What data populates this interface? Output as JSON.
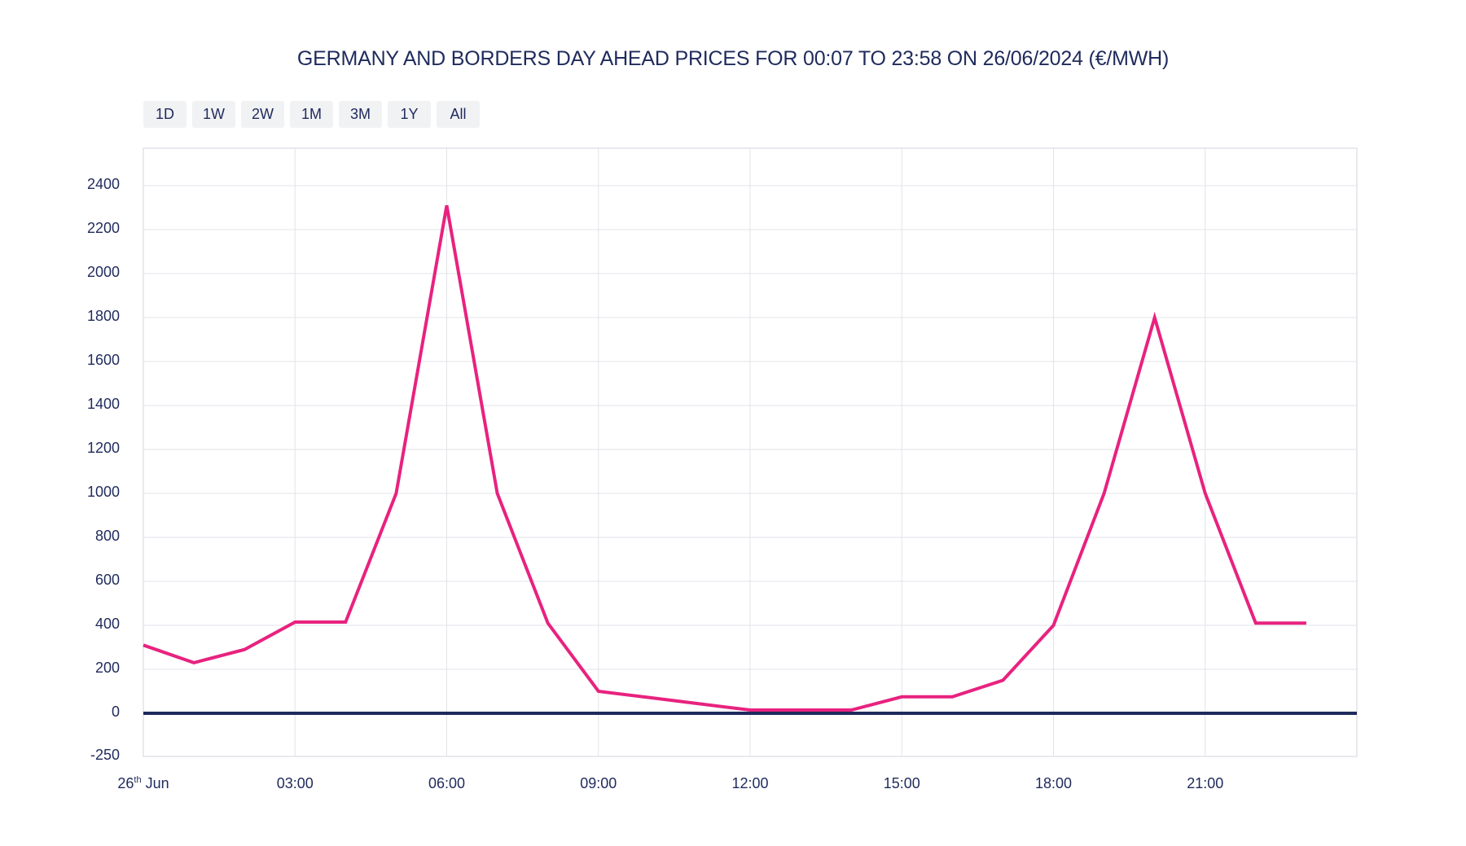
{
  "chart_data": {
    "type": "line",
    "title": "GERMANY AND BORDERS DAY AHEAD PRICES FOR 00:07 TO 23:58 ON 26/06/2024 (€/MWH)",
    "range_buttons": [
      "1D",
      "1W",
      "2W",
      "1M",
      "3M",
      "1Y",
      "All"
    ],
    "x": [
      "00:00",
      "01:00",
      "02:00",
      "03:00",
      "04:00",
      "05:00",
      "06:00",
      "07:00",
      "08:00",
      "09:00",
      "10:00",
      "11:00",
      "12:00",
      "13:00",
      "14:00",
      "15:00",
      "16:00",
      "17:00",
      "18:00",
      "19:00",
      "20:00",
      "21:00",
      "22:00",
      "23:00"
    ],
    "values": [
      310,
      230,
      290,
      415,
      415,
      1000,
      2310,
      1000,
      410,
      100,
      72,
      43,
      15,
      15,
      15,
      75,
      75,
      150,
      400,
      1000,
      1800,
      1000,
      410,
      410
    ],
    "x_tick_labels": [
      {
        "main": "26",
        "sup": "th",
        "suffix": " Jun"
      },
      {
        "main": "03:00"
      },
      {
        "main": "06:00"
      },
      {
        "main": "09:00"
      },
      {
        "main": "12:00"
      },
      {
        "main": "15:00"
      },
      {
        "main": "18:00"
      },
      {
        "main": "21:00"
      }
    ],
    "y_ticks": [
      2400,
      2200,
      2000,
      1800,
      1600,
      1400,
      1200,
      1000,
      800,
      600,
      400,
      200,
      0,
      -250
    ],
    "ylim": [
      -250,
      2400
    ],
    "grid": true,
    "colors": {
      "series": "#e8227f",
      "zero_line": "#1f2a5c",
      "grid": "#e1e3e8",
      "text": "#1f2a5c"
    }
  }
}
